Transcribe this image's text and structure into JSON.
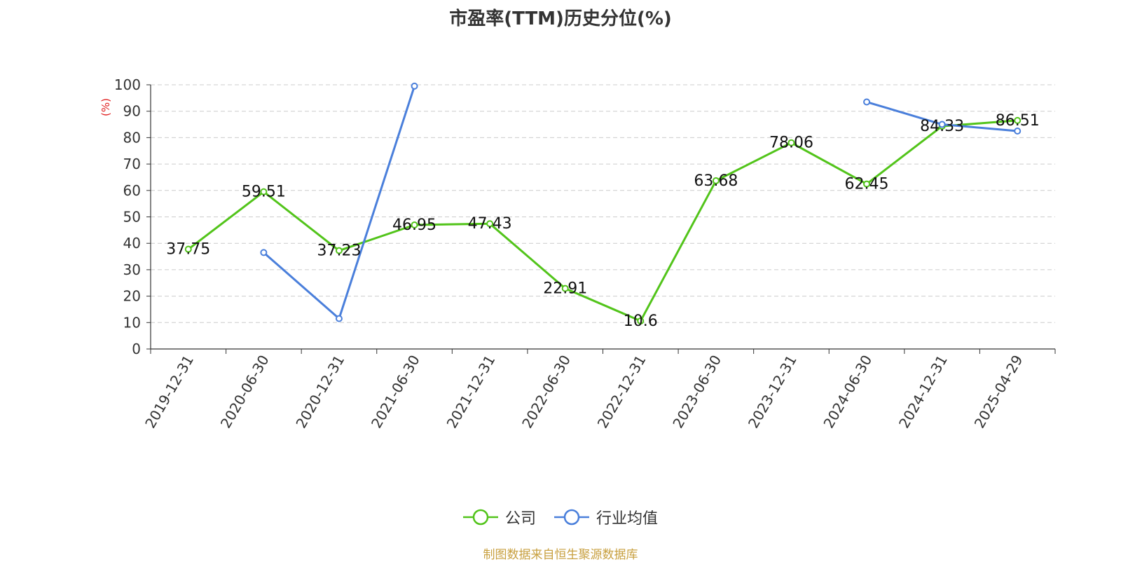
{
  "chart_data": {
    "type": "line",
    "title": "市盈率(TTM)历史分位(%)",
    "ylabel": "(%)",
    "xlabel": "",
    "ylim": [
      0,
      100
    ],
    "yticks": [
      0,
      10,
      20,
      30,
      40,
      50,
      60,
      70,
      80,
      90,
      100
    ],
    "grid": true,
    "legend_position": "bottom",
    "categories": [
      "2019-12-31",
      "2020-06-30",
      "2020-12-31",
      "2021-06-30",
      "2021-12-31",
      "2022-06-30",
      "2022-12-31",
      "2023-06-30",
      "2023-12-31",
      "2024-06-30",
      "2024-12-31",
      "2025-04-29"
    ],
    "series": [
      {
        "name": "公司",
        "color": "#52c41a",
        "show_labels": true,
        "values": [
          37.75,
          59.51,
          37.23,
          46.95,
          47.43,
          22.91,
          10.6,
          63.68,
          78.06,
          62.45,
          84.33,
          86.51
        ]
      },
      {
        "name": "行业均值",
        "color": "#4a7fdb",
        "show_labels": false,
        "values": [
          null,
          36.5,
          11.5,
          99.5,
          null,
          null,
          null,
          null,
          null,
          93.5,
          85.0,
          82.5
        ]
      }
    ]
  },
  "source_text": "制图数据来自恒生聚源数据库"
}
